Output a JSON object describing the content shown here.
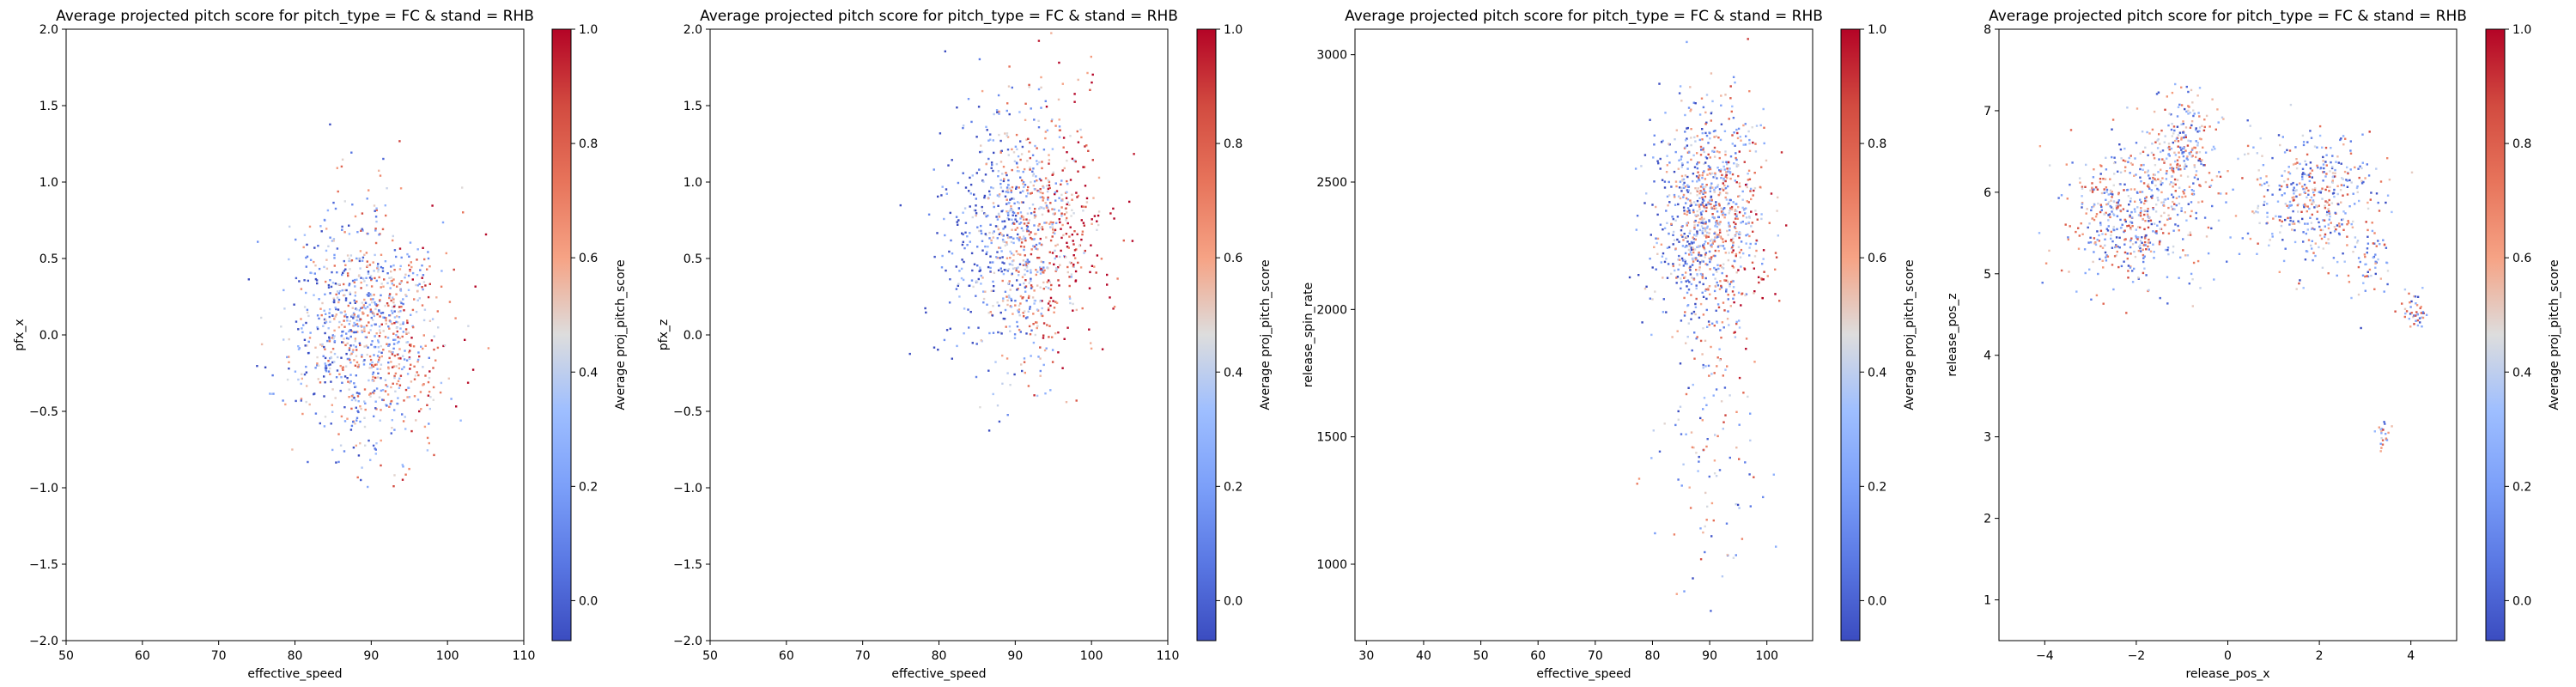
{
  "figure": {
    "background": "#ffffff",
    "colormap": "coolwarm"
  },
  "chart_data": [
    {
      "type": "scatter",
      "title": "Average projected pitch score for pitch_type = FC & stand = RHB",
      "xlabel": "effective_speed",
      "ylabel": "pfx_x",
      "xlim": [
        50,
        110
      ],
      "ylim": [
        -2.0,
        2.0
      ],
      "xticks": [
        50,
        60,
        70,
        80,
        90,
        100,
        110
      ],
      "xtick_labels": [
        "50",
        "60",
        "70",
        "80",
        "90",
        "100",
        "110"
      ],
      "yticks": [
        -2.0,
        -1.5,
        -1.0,
        -0.5,
        0.0,
        0.5,
        1.0,
        1.5,
        2.0
      ],
      "ytick_labels": [
        "−2.0",
        "−1.5",
        "−1.0",
        "−0.5",
        "0.0",
        "0.5",
        "1.0",
        "1.5",
        "2.0"
      ],
      "grid": false,
      "colorbar": {
        "label": "Average proj_pitch_score",
        "range": [
          -0.07,
          1.0
        ],
        "ticks": [
          0.0,
          0.2,
          0.4,
          0.6,
          0.8,
          1.0
        ],
        "tick_labels": [
          "0.0",
          "0.2",
          "0.4",
          "0.6",
          "0.8",
          "1.0"
        ]
      },
      "clusters": [
        {
          "cx": 89.5,
          "cy": 0.05,
          "sx": 5.0,
          "sy": 0.38,
          "n": 1000,
          "color_slope": 0.1
        }
      ]
    },
    {
      "type": "scatter",
      "title": "Average projected pitch score for pitch_type = FC & stand = RHB",
      "xlabel": "effective_speed",
      "ylabel": "pfx_z",
      "xlim": [
        50,
        110
      ],
      "ylim": [
        -2.0,
        2.0
      ],
      "xticks": [
        50,
        60,
        70,
        80,
        90,
        100,
        110
      ],
      "xtick_labels": [
        "50",
        "60",
        "70",
        "80",
        "90",
        "100",
        "110"
      ],
      "yticks": [
        -2.0,
        -1.5,
        -1.0,
        -0.5,
        0.0,
        0.5,
        1.0,
        1.5,
        2.0
      ],
      "ytick_labels": [
        "−2.0",
        "−1.5",
        "−1.0",
        "−0.5",
        "0.0",
        "0.5",
        "1.0",
        "1.5",
        "2.0"
      ],
      "grid": false,
      "colorbar": {
        "label": "Average proj_pitch_score",
        "range": [
          -0.07,
          1.0
        ],
        "ticks": [
          0.0,
          0.2,
          0.4,
          0.6,
          0.8,
          1.0
        ],
        "tick_labels": [
          "0.0",
          "0.2",
          "0.4",
          "0.6",
          "0.8",
          "1.0"
        ]
      },
      "clusters": [
        {
          "cx": 91.0,
          "cy": 0.65,
          "sx": 5.0,
          "sy": 0.42,
          "n": 1000,
          "color_slope": 0.25
        }
      ]
    },
    {
      "type": "scatter",
      "title": "Average projected pitch score for pitch_type = FC & stand = RHB",
      "xlabel": "effective_speed",
      "ylabel": "release_spin_rate",
      "xlim": [
        28,
        108
      ],
      "ylim": [
        700,
        3100
      ],
      "xticks": [
        30,
        40,
        50,
        60,
        70,
        80,
        90,
        100
      ],
      "xtick_labels": [
        "30",
        "40",
        "50",
        "60",
        "70",
        "80",
        "90",
        "100"
      ],
      "yticks": [
        1000,
        1500,
        2000,
        2500,
        3000
      ],
      "ytick_labels": [
        "1000",
        "1500",
        "2000",
        "2500",
        "3000"
      ],
      "grid": false,
      "colorbar": {
        "label": "Average proj_pitch_score",
        "range": [
          -0.07,
          1.0
        ],
        "ticks": [
          0.0,
          0.2,
          0.4,
          0.6,
          0.8,
          1.0
        ],
        "tick_labels": [
          "0.0",
          "0.2",
          "0.4",
          "0.6",
          "0.8",
          "1.0"
        ]
      },
      "clusters": [
        {
          "cx": 90.0,
          "cy": 2330,
          "sx": 4.5,
          "sy": 240,
          "n": 1000,
          "color_slope": 0.12
        },
        {
          "cx": 90.0,
          "cy": 1350,
          "sx": 5.0,
          "sy": 230,
          "n": 90,
          "color_slope": 0.0
        }
      ]
    },
    {
      "type": "scatter",
      "title": "Average projected pitch score for pitch_type = FC & stand = RHB",
      "xlabel": "release_pos_x",
      "ylabel": "release_pos_z",
      "xlim": [
        -5.0,
        5.0
      ],
      "ylim": [
        0.5,
        8.0
      ],
      "xticks": [
        -4,
        -2,
        0,
        2,
        4
      ],
      "xtick_labels": [
        "−4",
        "−2",
        "0",
        "2",
        "4"
      ],
      "yticks": [
        1,
        2,
        3,
        4,
        5,
        6,
        7,
        8
      ],
      "ytick_labels": [
        "1",
        "2",
        "3",
        "4",
        "5",
        "6",
        "7",
        "8"
      ],
      "grid": false,
      "colorbar": {
        "label": "Average proj_pitch_score",
        "range": [
          -0.07,
          1.0
        ],
        "ticks": [
          0.0,
          0.2,
          0.4,
          0.6,
          0.8,
          1.0
        ],
        "tick_labels": [
          "0.0",
          "0.2",
          "0.4",
          "0.6",
          "0.8",
          "1.0"
        ]
      },
      "clusters": [
        {
          "cx": -2.1,
          "cy": 5.75,
          "sx": 0.7,
          "sy": 0.42,
          "n": 520,
          "color_slope": 0.0
        },
        {
          "cx": -1.0,
          "cy": 6.55,
          "sx": 0.35,
          "sy": 0.35,
          "n": 220,
          "color_slope": 0.0
        },
        {
          "cx": 1.8,
          "cy": 5.95,
          "sx": 0.75,
          "sy": 0.4,
          "n": 420,
          "color_slope": 0.0
        },
        {
          "cx": 3.1,
          "cy": 5.2,
          "sx": 0.25,
          "sy": 0.3,
          "n": 60,
          "color_slope": 0.0
        },
        {
          "cx": 4.1,
          "cy": 4.55,
          "sx": 0.14,
          "sy": 0.12,
          "n": 45,
          "color_slope": 0.0
        },
        {
          "cx": 3.35,
          "cy": 3.05,
          "sx": 0.1,
          "sy": 0.12,
          "n": 22,
          "color_slope": 0.0
        }
      ]
    }
  ]
}
